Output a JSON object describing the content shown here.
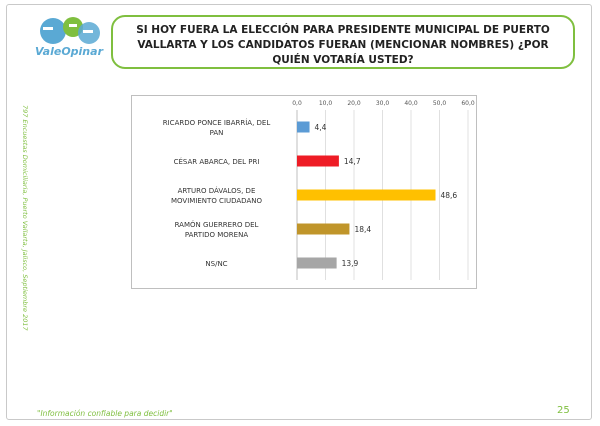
{
  "brand": {
    "name": "ValeOpinar"
  },
  "question": "SI HOY FUERA LA ELECCIÓN PARA PRESIDENTE MUNICIPAL DE PUERTO VALLARTA Y LOS CANDIDATOS FUERAN (MENCIONAR NOMBRES) ¿POR QUIÉN VOTARÍA USTED?",
  "side_note": "797 Encuestas Domiciliaria, Puerto Vallarta, Jalisco, Septiembre 2017",
  "footer": "\"Información confiable para decidir\"",
  "page_number": "25",
  "colors": {
    "accent": "#7fbf3f",
    "brand_blue": "#5aa9d4"
  },
  "chart_data": {
    "type": "bar",
    "orientation": "horizontal",
    "categories": [
      [
        "RICARDO PONCE IBARRÍA, DEL",
        "PAN"
      ],
      [
        "CÉSAR ABARCA, DEL PRI"
      ],
      [
        "ARTURO DÁVALOS, DE",
        "MOVIMIENTO CIUDADANO"
      ],
      [
        "RAMÓN GUERRERO DEL",
        "PARTIDO MORENA"
      ],
      [
        "NS/NC"
      ]
    ],
    "values": [
      4.4,
      14.7,
      48.6,
      18.4,
      13.9
    ],
    "value_labels": [
      "4,4",
      "14,7",
      "48,6",
      "18,4",
      "13,9"
    ],
    "colors": [
      "#5b9bd5",
      "#ee1c25",
      "#ffc000",
      "#c0952a",
      "#a6a6a6"
    ],
    "xlim": [
      0,
      60
    ],
    "ticks": [
      "0,0",
      "10,0",
      "20,0",
      "30,0",
      "40,0",
      "50,0",
      "60,0"
    ],
    "gridlines": true,
    "axis_position": "top"
  }
}
